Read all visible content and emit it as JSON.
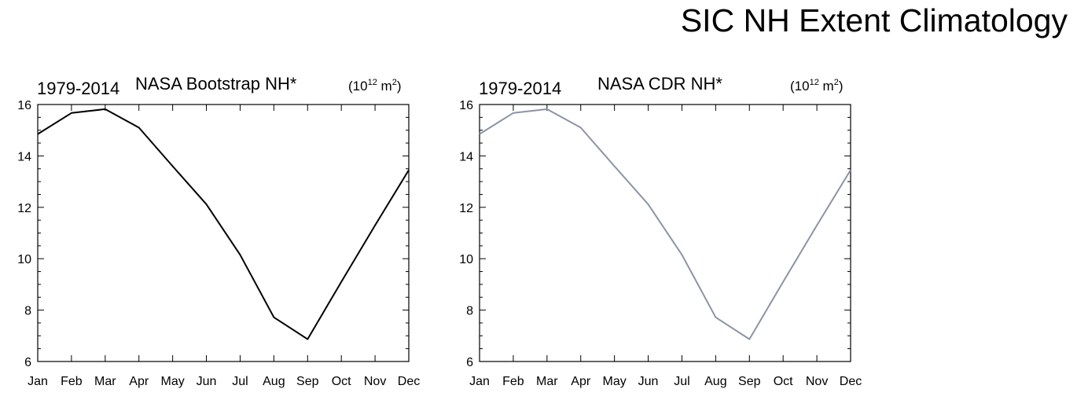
{
  "page_title": "SIC NH Extent Climatology",
  "chart_data": [
    {
      "type": "line",
      "title": "NASA Bootstrap NH*",
      "left_label": "1979-2014",
      "unit_label": {
        "prefix": "(10",
        "exp": "12",
        "mid": " m",
        "exp2": "2",
        "suffix": ")"
      },
      "categories": [
        "Jan",
        "Feb",
        "Mar",
        "Apr",
        "May",
        "Jun",
        "Jul",
        "Aug",
        "Sep",
        "Oct",
        "Nov",
        "Dec"
      ],
      "series": [
        {
          "values": [
            14.85,
            15.67,
            15.82,
            15.1,
            13.6,
            12.12,
            10.15,
            7.72,
            6.87,
            9.1,
            11.3,
            13.45
          ],
          "color": "#000000"
        }
      ],
      "ylim": [
        6,
        16
      ],
      "yticks": [
        6,
        8,
        10,
        12,
        14,
        16
      ],
      "grid": false
    },
    {
      "type": "line",
      "title": "NASA CDR NH*",
      "left_label": "1979-2014",
      "unit_label": {
        "prefix": "(10",
        "exp": "12",
        "mid": " m",
        "exp2": "2",
        "suffix": ")"
      },
      "categories": [
        "Jan",
        "Feb",
        "Mar",
        "Apr",
        "May",
        "Jun",
        "Jul",
        "Aug",
        "Sep",
        "Oct",
        "Nov",
        "Dec"
      ],
      "series": [
        {
          "values": [
            14.85,
            15.67,
            15.82,
            15.1,
            13.6,
            12.12,
            10.15,
            7.72,
            6.87,
            9.1,
            11.3,
            13.45
          ],
          "color": "#8d93a6"
        }
      ],
      "ylim": [
        6,
        16
      ],
      "yticks": [
        6,
        8,
        10,
        12,
        14,
        16
      ],
      "grid": false
    }
  ]
}
